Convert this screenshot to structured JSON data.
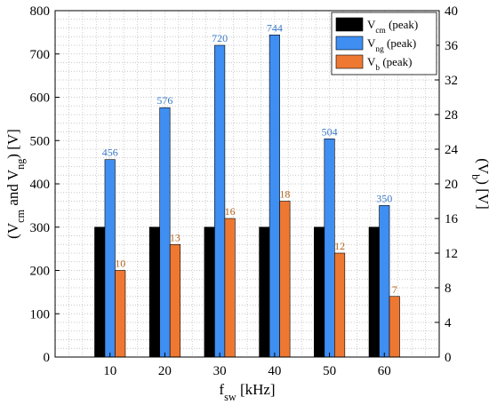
{
  "chart_data": {
    "type": "bar",
    "categories": [
      "10",
      "20",
      "30",
      "40",
      "50",
      "60"
    ],
    "x_ticks": [
      "10",
      "20",
      "30",
      "40",
      "50",
      "60"
    ],
    "series": [
      {
        "name": "V_cm (peak)",
        "axis": "left",
        "color": "#000000",
        "values": [
          300,
          300,
          300,
          300,
          300,
          300
        ],
        "labels": []
      },
      {
        "name": "V_ng (peak)",
        "axis": "left",
        "color": "#3f8ef2",
        "values": [
          456,
          576,
          720,
          744,
          504,
          350
        ],
        "labels": [
          "456",
          "576",
          "720",
          "744",
          "504",
          "350"
        ],
        "label_color": "#3a78c8"
      },
      {
        "name": "V_b (peak)",
        "axis": "right",
        "color": "#ee7832",
        "values": [
          10,
          13,
          16,
          18,
          12,
          7
        ],
        "labels": [
          "10",
          "13",
          "16",
          "18",
          "12",
          "7"
        ],
        "label_color": "#b5651d"
      }
    ],
    "y_left": {
      "min": 0,
      "max": 800,
      "ticks": [
        "0",
        "100",
        "200",
        "300",
        "400",
        "500",
        "600",
        "700",
        "800"
      ]
    },
    "y_right": {
      "min": 0,
      "max": 40,
      "ticks": [
        "0",
        "4",
        "8",
        "12",
        "16",
        "20",
        "24",
        "28",
        "32",
        "36",
        "40"
      ]
    },
    "xlabel": {
      "main": "f",
      "sub": "sw",
      "rest": " [kHz]"
    },
    "ylabel_left": {
      "parts": [
        [
          "(V",
          ""
        ],
        [
          "cm",
          "sub"
        ],
        [
          " and V",
          ""
        ],
        [
          "ng",
          "sub"
        ],
        [
          ") [V]",
          ""
        ]
      ]
    },
    "ylabel_right": {
      "parts": [
        [
          "(V",
          ""
        ],
        [
          "b",
          "sub"
        ],
        [
          ") [V]",
          ""
        ]
      ]
    },
    "legend": {
      "position": "top-right",
      "items": [
        {
          "main": "V",
          "sub": "cm",
          "rest": " (peak)",
          "color": "#000000"
        },
        {
          "main": "V",
          "sub": "ng",
          "rest": " (peak)",
          "color": "#3f8ef2"
        },
        {
          "main": "V",
          "sub": "b",
          "rest": " (peak)",
          "color": "#ee7832"
        }
      ]
    },
    "grid": "dotted"
  }
}
